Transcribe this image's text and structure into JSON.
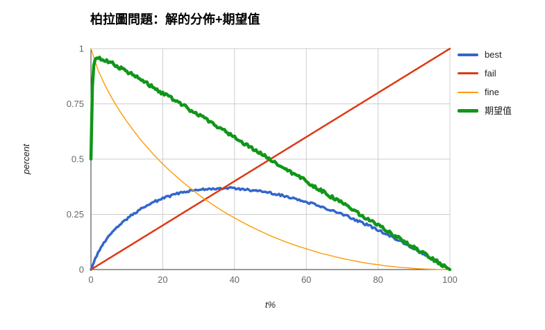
{
  "chart_data": {
    "type": "line",
    "title": "柏拉圖問題：解的分佈+期望值",
    "xlabel": "t%",
    "ylabel": "percent",
    "xlim": [
      0,
      100
    ],
    "ylim": [
      0,
      1
    ],
    "x_ticks": [
      0,
      20,
      40,
      60,
      80,
      100
    ],
    "y_ticks": [
      0,
      0.25,
      0.5,
      0.75,
      1
    ],
    "grid": true,
    "legend_position": "right",
    "background": "#ffffff",
    "gridline_color": "#cccccc",
    "axis_line_color": "#333333",
    "tick_label_color": "#666666",
    "series": [
      {
        "name": "best",
        "color": "#3366CC",
        "stroke_width": 3.5,
        "noise": 0.005,
        "points": [
          [
            0,
            0
          ],
          [
            2,
            0.078
          ],
          [
            4,
            0.129
          ],
          [
            6,
            0.169
          ],
          [
            8,
            0.202
          ],
          [
            10,
            0.23
          ],
          [
            12,
            0.254
          ],
          [
            14,
            0.275
          ],
          [
            16,
            0.293
          ],
          [
            18,
            0.309
          ],
          [
            20,
            0.322
          ],
          [
            22,
            0.333
          ],
          [
            24,
            0.343
          ],
          [
            26,
            0.35
          ],
          [
            28,
            0.356
          ],
          [
            30,
            0.361
          ],
          [
            32,
            0.365
          ],
          [
            34,
            0.367
          ],
          [
            36,
            0.368
          ],
          [
            38,
            0.368
          ],
          [
            40,
            0.367
          ],
          [
            42,
            0.364
          ],
          [
            44,
            0.361
          ],
          [
            46,
            0.357
          ],
          [
            48,
            0.352
          ],
          [
            50,
            0.347
          ],
          [
            52,
            0.34
          ],
          [
            54,
            0.333
          ],
          [
            56,
            0.325
          ],
          [
            58,
            0.316
          ],
          [
            60,
            0.306
          ],
          [
            62,
            0.296
          ],
          [
            64,
            0.286
          ],
          [
            66,
            0.274
          ],
          [
            68,
            0.262
          ],
          [
            70,
            0.25
          ],
          [
            72,
            0.237
          ],
          [
            74,
            0.223
          ],
          [
            76,
            0.209
          ],
          [
            78,
            0.194
          ],
          [
            80,
            0.179
          ],
          [
            82,
            0.163
          ],
          [
            84,
            0.146
          ],
          [
            86,
            0.13
          ],
          [
            88,
            0.113
          ],
          [
            90,
            0.095
          ],
          [
            92,
            0.077
          ],
          [
            94,
            0.058
          ],
          [
            96,
            0.039
          ],
          [
            98,
            0.02
          ],
          [
            100,
            0
          ]
        ]
      },
      {
        "name": "fail",
        "color": "#DC3912",
        "stroke_width": 2.5,
        "noise": 0,
        "points": [
          [
            0,
            0
          ],
          [
            10,
            0.1
          ],
          [
            20,
            0.2
          ],
          [
            30,
            0.3
          ],
          [
            40,
            0.4
          ],
          [
            50,
            0.5
          ],
          [
            60,
            0.6
          ],
          [
            70,
            0.7
          ],
          [
            80,
            0.8
          ],
          [
            90,
            0.9
          ],
          [
            100,
            1
          ]
        ]
      },
      {
        "name": "fine",
        "color": "#FF9900",
        "stroke_width": 1.4,
        "noise": 0,
        "points": [
          [
            0,
            1
          ],
          [
            2,
            0.902
          ],
          [
            4,
            0.831
          ],
          [
            6,
            0.771
          ],
          [
            8,
            0.718
          ],
          [
            10,
            0.67
          ],
          [
            12,
            0.626
          ],
          [
            14,
            0.585
          ],
          [
            16,
            0.547
          ],
          [
            18,
            0.511
          ],
          [
            20,
            0.478
          ],
          [
            22,
            0.447
          ],
          [
            24,
            0.418
          ],
          [
            26,
            0.39
          ],
          [
            28,
            0.364
          ],
          [
            30,
            0.339
          ],
          [
            32,
            0.315
          ],
          [
            34,
            0.293
          ],
          [
            36,
            0.272
          ],
          [
            38,
            0.252
          ],
          [
            40,
            0.234
          ],
          [
            42,
            0.216
          ],
          [
            44,
            0.199
          ],
          [
            46,
            0.183
          ],
          [
            48,
            0.168
          ],
          [
            50,
            0.153
          ],
          [
            52,
            0.14
          ],
          [
            54,
            0.127
          ],
          [
            56,
            0.115
          ],
          [
            58,
            0.104
          ],
          [
            60,
            0.094
          ],
          [
            62,
            0.084
          ],
          [
            64,
            0.074
          ],
          [
            66,
            0.066
          ],
          [
            68,
            0.058
          ],
          [
            70,
            0.05
          ],
          [
            72,
            0.044
          ],
          [
            74,
            0.037
          ],
          [
            76,
            0.031
          ],
          [
            78,
            0.026
          ],
          [
            80,
            0.022
          ],
          [
            82,
            0.017
          ],
          [
            84,
            0.014
          ],
          [
            86,
            0.01
          ],
          [
            88,
            0.008
          ],
          [
            90,
            0.005
          ],
          [
            92,
            0.003
          ],
          [
            94,
            0.002
          ],
          [
            96,
            0.001
          ],
          [
            98,
            0.0002
          ],
          [
            100,
            0
          ]
        ]
      },
      {
        "name": "期望值",
        "color": "#109618",
        "stroke_width": 4.5,
        "noise": 0.008,
        "points": [
          [
            0,
            0.5
          ],
          [
            0.5,
            0.91
          ],
          [
            1,
            0.945
          ],
          [
            2,
            0.955
          ],
          [
            3,
            0.953
          ],
          [
            4,
            0.948
          ],
          [
            5,
            0.94
          ],
          [
            6,
            0.932
          ],
          [
            8,
            0.915
          ],
          [
            10,
            0.897
          ],
          [
            15,
            0.848
          ],
          [
            20,
            0.798
          ],
          [
            25,
            0.749
          ],
          [
            30,
            0.699
          ],
          [
            35,
            0.649
          ],
          [
            40,
            0.599
          ],
          [
            45,
            0.549
          ],
          [
            50,
            0.5
          ],
          [
            55,
            0.449
          ],
          [
            60,
            0.4
          ],
          [
            65,
            0.349
          ],
          [
            70,
            0.3
          ],
          [
            75,
            0.25
          ],
          [
            80,
            0.2
          ],
          [
            85,
            0.15
          ],
          [
            90,
            0.1
          ],
          [
            95,
            0.05
          ],
          [
            100,
            0
          ]
        ]
      }
    ]
  }
}
